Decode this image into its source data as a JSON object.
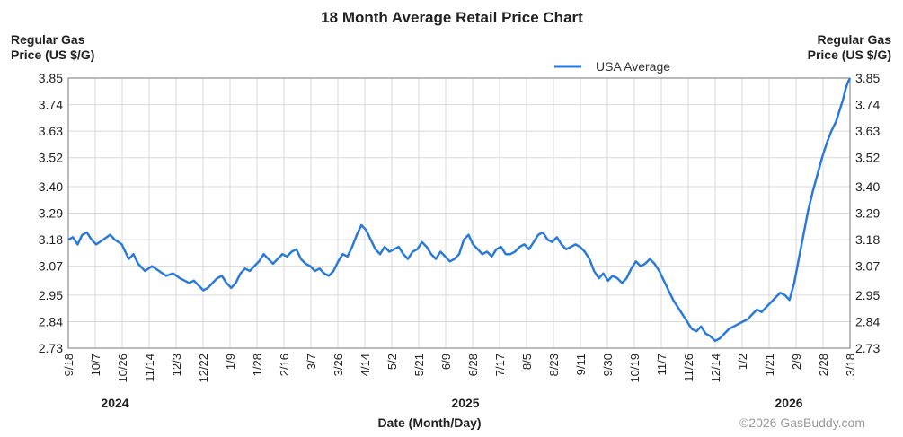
{
  "chart_data": {
    "type": "line",
    "title": "18 Month Average Retail Price Chart",
    "ylabel_left": "Regular Gas Price (US $/G)",
    "ylabel_right": "Regular Gas Price (US $/G)",
    "xlabel": "Date (Month/Day)",
    "credit": "©2026 GasBuddy.com",
    "legend": {
      "position": "top-center",
      "entries": [
        {
          "name": "USA Average",
          "color": "#2a7ad8"
        }
      ]
    },
    "ylim": [
      2.73,
      3.85
    ],
    "y_ticks": [
      "3.85",
      "3.74",
      "3.63",
      "3.52",
      "3.40",
      "3.29",
      "3.18",
      "3.07",
      "2.95",
      "2.84",
      "2.73"
    ],
    "x_ticks": [
      "9/18",
      "10/7",
      "10/26",
      "11/14",
      "12/3",
      "12/22",
      "1/9",
      "1/28",
      "2/16",
      "3/7",
      "3/26",
      "4/14",
      "5/2",
      "5/21",
      "6/9",
      "6/28",
      "7/17",
      "8/5",
      "8/23",
      "9/11",
      "9/30",
      "10/19",
      "11/7",
      "11/26",
      "12/14",
      "1/2",
      "1/21",
      "2/9",
      "2/28",
      "3/18"
    ],
    "years": [
      {
        "label": "2024",
        "tick_index": 2
      },
      {
        "label": "2025",
        "tick_index": 15
      },
      {
        "label": "2026",
        "tick_index": 27
      }
    ],
    "tick_count": 29,
    "series": [
      {
        "name": "USA Average",
        "color": "#2a7ad8",
        "points": [
          [
            0,
            3.18
          ],
          [
            0.2,
            3.19
          ],
          [
            0.4,
            3.16
          ],
          [
            0.6,
            3.2
          ],
          [
            0.8,
            3.21
          ],
          [
            1.0,
            3.18
          ],
          [
            1.2,
            3.16
          ],
          [
            1.5,
            3.18
          ],
          [
            1.8,
            3.2
          ],
          [
            2.0,
            3.18
          ],
          [
            2.3,
            3.16
          ],
          [
            2.6,
            3.1
          ],
          [
            2.8,
            3.12
          ],
          [
            3.0,
            3.08
          ],
          [
            3.3,
            3.05
          ],
          [
            3.6,
            3.07
          ],
          [
            3.9,
            3.05
          ],
          [
            4.2,
            3.03
          ],
          [
            4.5,
            3.04
          ],
          [
            4.8,
            3.02
          ],
          [
            5.0,
            3.01
          ],
          [
            5.2,
            3.0
          ],
          [
            5.4,
            3.01
          ],
          [
            5.6,
            2.99
          ],
          [
            5.8,
            2.97
          ],
          [
            6.0,
            2.98
          ],
          [
            6.2,
            3.0
          ],
          [
            6.4,
            3.02
          ],
          [
            6.6,
            3.03
          ],
          [
            6.8,
            3.0
          ],
          [
            7.0,
            2.98
          ],
          [
            7.2,
            3.0
          ],
          [
            7.4,
            3.04
          ],
          [
            7.6,
            3.06
          ],
          [
            7.8,
            3.05
          ],
          [
            8.0,
            3.07
          ],
          [
            8.2,
            3.09
          ],
          [
            8.4,
            3.12
          ],
          [
            8.6,
            3.1
          ],
          [
            8.8,
            3.08
          ],
          [
            9.0,
            3.1
          ],
          [
            9.2,
            3.12
          ],
          [
            9.4,
            3.11
          ],
          [
            9.6,
            3.13
          ],
          [
            9.8,
            3.14
          ],
          [
            10.0,
            3.1
          ],
          [
            10.2,
            3.08
          ],
          [
            10.4,
            3.07
          ],
          [
            10.6,
            3.05
          ],
          [
            10.8,
            3.06
          ],
          [
            11.0,
            3.04
          ],
          [
            11.2,
            3.03
          ],
          [
            11.4,
            3.05
          ],
          [
            11.6,
            3.09
          ],
          [
            11.8,
            3.12
          ],
          [
            12.0,
            3.11
          ],
          [
            12.2,
            3.15
          ],
          [
            12.4,
            3.2
          ],
          [
            12.6,
            3.24
          ],
          [
            12.8,
            3.22
          ],
          [
            13.0,
            3.18
          ],
          [
            13.2,
            3.14
          ],
          [
            13.4,
            3.12
          ],
          [
            13.6,
            3.15
          ],
          [
            13.8,
            3.13
          ],
          [
            14.0,
            3.14
          ],
          [
            14.2,
            3.15
          ],
          [
            14.4,
            3.12
          ],
          [
            14.6,
            3.1
          ],
          [
            14.8,
            3.13
          ],
          [
            15.0,
            3.14
          ],
          [
            15.2,
            3.17
          ],
          [
            15.4,
            3.15
          ],
          [
            15.6,
            3.12
          ],
          [
            15.8,
            3.1
          ],
          [
            16.0,
            3.13
          ],
          [
            16.2,
            3.11
          ],
          [
            16.4,
            3.09
          ],
          [
            16.6,
            3.1
          ],
          [
            16.8,
            3.12
          ],
          [
            17.0,
            3.18
          ],
          [
            17.2,
            3.2
          ],
          [
            17.4,
            3.16
          ],
          [
            17.6,
            3.14
          ],
          [
            17.8,
            3.12
          ],
          [
            18.0,
            3.13
          ],
          [
            18.2,
            3.11
          ],
          [
            18.4,
            3.14
          ],
          [
            18.6,
            3.15
          ],
          [
            18.8,
            3.12
          ],
          [
            19.0,
            3.12
          ],
          [
            19.2,
            3.13
          ],
          [
            19.4,
            3.15
          ],
          [
            19.6,
            3.16
          ],
          [
            19.8,
            3.14
          ],
          [
            20.0,
            3.17
          ],
          [
            20.2,
            3.2
          ],
          [
            20.4,
            3.21
          ],
          [
            20.6,
            3.18
          ],
          [
            20.8,
            3.17
          ],
          [
            21.0,
            3.19
          ],
          [
            21.2,
            3.16
          ],
          [
            21.4,
            3.14
          ],
          [
            21.6,
            3.15
          ],
          [
            21.8,
            3.16
          ],
          [
            22.0,
            3.15
          ],
          [
            22.2,
            3.13
          ],
          [
            22.4,
            3.1
          ],
          [
            22.6,
            3.05
          ],
          [
            22.8,
            3.02
          ],
          [
            23.0,
            3.04
          ],
          [
            23.2,
            3.01
          ],
          [
            23.4,
            3.03
          ],
          [
            23.6,
            3.02
          ],
          [
            23.8,
            3.0
          ],
          [
            24.0,
            3.02
          ],
          [
            24.2,
            3.06
          ],
          [
            24.4,
            3.09
          ],
          [
            24.6,
            3.07
          ],
          [
            24.8,
            3.08
          ],
          [
            25.0,
            3.1
          ],
          [
            25.2,
            3.08
          ],
          [
            25.4,
            3.05
          ],
          [
            25.6,
            3.01
          ],
          [
            25.8,
            2.97
          ],
          [
            26.0,
            2.93
          ],
          [
            26.2,
            2.9
          ],
          [
            26.4,
            2.87
          ],
          [
            26.6,
            2.84
          ],
          [
            26.8,
            2.81
          ],
          [
            27.0,
            2.8
          ],
          [
            27.2,
            2.82
          ],
          [
            27.4,
            2.79
          ],
          [
            27.6,
            2.78
          ],
          [
            27.8,
            2.76
          ],
          [
            28.0,
            2.77
          ],
          [
            28.2,
            2.79
          ],
          [
            28.4,
            2.81
          ],
          [
            28.6,
            2.82
          ],
          [
            28.8,
            2.83
          ],
          [
            29.0,
            2.84
          ],
          [
            29.2,
            2.85
          ],
          [
            29.4,
            2.87
          ],
          [
            29.6,
            2.89
          ],
          [
            29.8,
            2.88
          ],
          [
            30.0,
            2.9
          ],
          [
            30.2,
            2.92
          ],
          [
            30.4,
            2.94
          ],
          [
            30.6,
            2.96
          ],
          [
            30.8,
            2.95
          ],
          [
            31.0,
            2.93
          ],
          [
            31.2,
            3.0
          ],
          [
            31.4,
            3.1
          ],
          [
            31.6,
            3.2
          ],
          [
            31.8,
            3.3
          ],
          [
            32.0,
            3.38
          ],
          [
            32.2,
            3.45
          ],
          [
            32.4,
            3.52
          ],
          [
            32.6,
            3.58
          ],
          [
            32.8,
            3.63
          ],
          [
            33.0,
            3.67
          ],
          [
            33.1,
            3.7
          ],
          [
            33.2,
            3.73
          ],
          [
            33.3,
            3.76
          ],
          [
            33.4,
            3.8
          ],
          [
            33.5,
            3.83
          ],
          [
            33.6,
            3.85
          ]
        ]
      }
    ]
  }
}
